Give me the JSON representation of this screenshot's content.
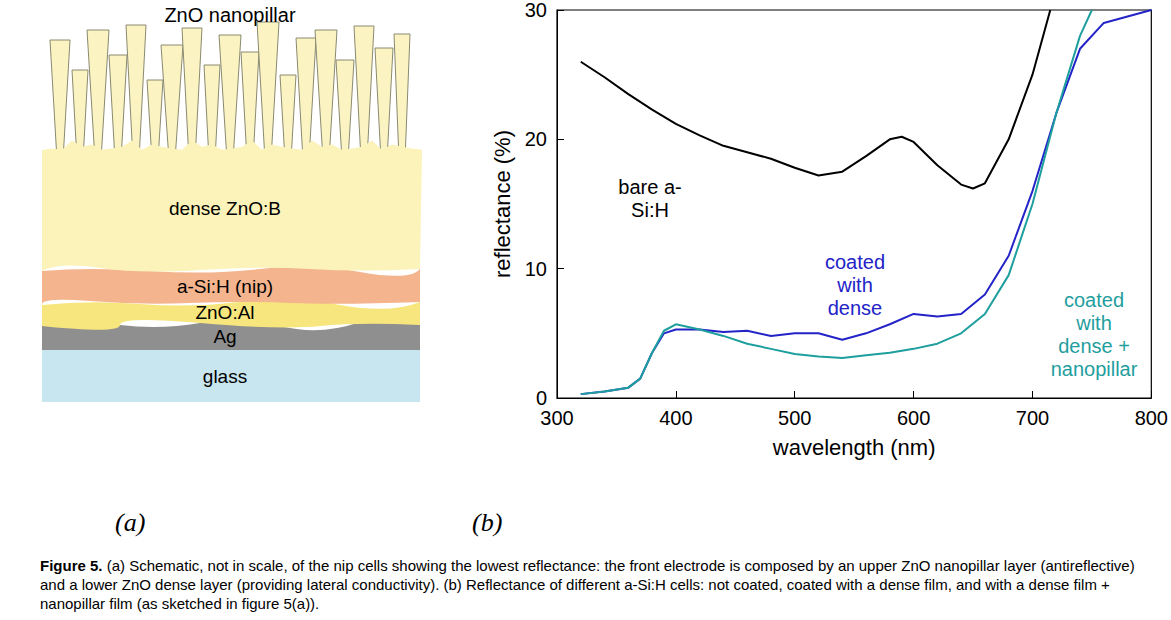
{
  "schematic": {
    "letter": "(a)",
    "layers": [
      "ZnO nanopillar",
      "dense ZnO:B",
      "a-Si:H (nip)",
      "ZnO:Al",
      "Ag",
      "glass"
    ]
  },
  "chart_data": {
    "letter": "(b)",
    "type": "line",
    "x_label": "wavelength (nm)",
    "y_label": "reflectance (%)",
    "xlim": [
      300,
      800
    ],
    "xticks": [
      300,
      400,
      500,
      600,
      700,
      800
    ],
    "ylim": [
      0,
      30
    ],
    "yticks": [
      0,
      10,
      20,
      30
    ],
    "grid": false,
    "series": [
      {
        "label": [
          "bare a-",
          "Si:H"
        ],
        "color": "#000000",
        "x": [
          320,
          340,
          360,
          380,
          400,
          420,
          440,
          460,
          480,
          500,
          520,
          540,
          560,
          580,
          590,
          600,
          620,
          640,
          650,
          660,
          680,
          700,
          715
        ],
        "values": [
          26,
          24.8,
          23.5,
          22.3,
          21.2,
          20.3,
          19.5,
          19,
          18.5,
          17.8,
          17.2,
          17.5,
          18.7,
          20,
          20.2,
          19.8,
          18,
          16.5,
          16.2,
          16.6,
          20,
          25,
          30
        ]
      },
      {
        "label": [
          "coated",
          "with",
          "dense"
        ],
        "color": "#2323c8",
        "x": [
          320,
          340,
          360,
          370,
          380,
          390,
          400,
          420,
          440,
          460,
          480,
          500,
          520,
          540,
          560,
          580,
          600,
          620,
          640,
          660,
          680,
          700,
          720,
          740,
          760,
          780,
          800
        ],
        "values": [
          0.3,
          0.5,
          0.8,
          1.5,
          3.5,
          5,
          5.3,
          5.3,
          5.1,
          5.2,
          4.8,
          5,
          5,
          4.5,
          5,
          5.7,
          6.5,
          6.3,
          6.5,
          8,
          11,
          16,
          22,
          27,
          29,
          29.5,
          30
        ]
      },
      {
        "label": [
          "coated",
          "with",
          "dense +",
          "nanopillar"
        ],
        "color": "#1f9e9e",
        "x": [
          320,
          340,
          360,
          370,
          380,
          390,
          400,
          420,
          440,
          460,
          480,
          500,
          520,
          540,
          560,
          580,
          600,
          620,
          640,
          660,
          680,
          700,
          720,
          740,
          750
        ],
        "values": [
          0.3,
          0.5,
          0.8,
          1.5,
          3.5,
          5.2,
          5.7,
          5.3,
          4.8,
          4.2,
          3.8,
          3.4,
          3.2,
          3.1,
          3.3,
          3.5,
          3.8,
          4.2,
          5,
          6.5,
          9.5,
          15,
          22,
          28,
          30
        ]
      }
    ]
  },
  "caption": {
    "label": "Figure 5.",
    "text": "(a) Schematic, not in scale, of the nip cells showing the lowest reflectance: the front electrode is composed by an upper ZnO nanopillar layer (antireflective) and a lower ZnO dense layer (providing lateral conductivity). (b) Reflectance of different a-Si:H cells: not coated, coated with a dense film, and with a dense film + nanopillar film (as sketched in figure 5(a))."
  }
}
